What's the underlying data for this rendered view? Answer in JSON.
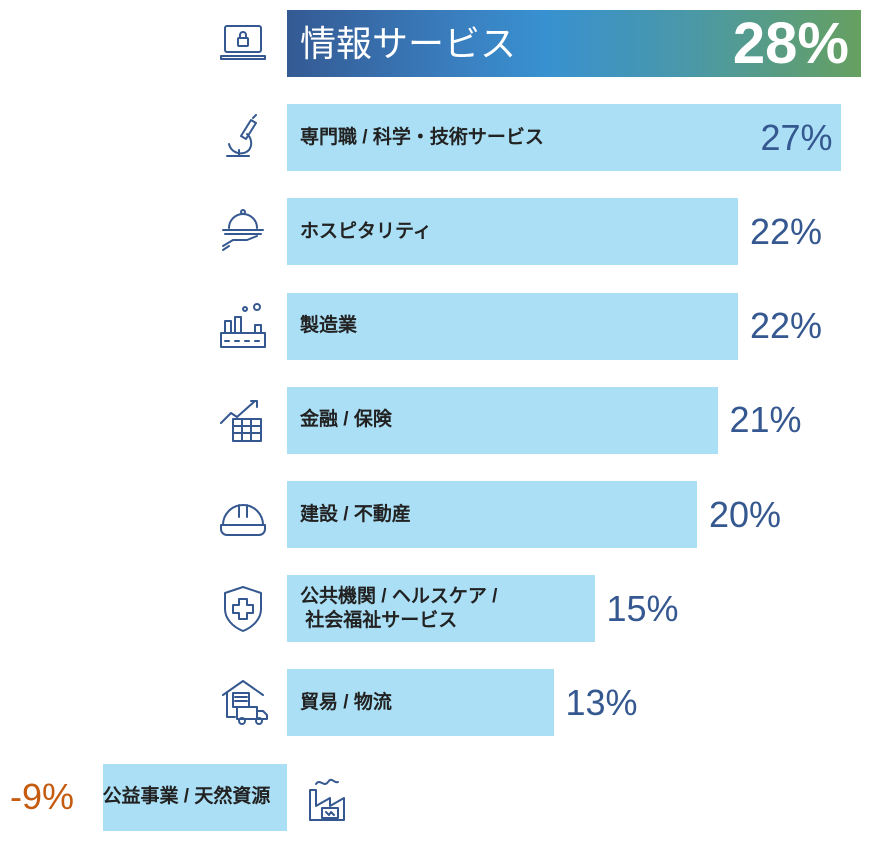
{
  "chart_data": {
    "type": "bar",
    "orientation": "horizontal",
    "categories": [
      "情報サービス",
      "専門職 / 科学・技術サービス",
      "ホスピタリティ",
      "製造業",
      "金融 / 保険",
      "建設 / 不動産",
      "公共機関 / ヘルスケア /\n 社会福祉サービス",
      "貿易 / 物流",
      "公益事業 / 天然資源"
    ],
    "values": [
      28,
      27,
      22,
      22,
      21,
      20,
      15,
      13,
      -9
    ],
    "value_labels": [
      "28%",
      "27%",
      "22%",
      "22%",
      "21%",
      "20%",
      "15%",
      "13%",
      "-9%"
    ],
    "icons": [
      "laptop-lock-icon",
      "microscope-icon",
      "service-cloche-icon",
      "factory-icon",
      "finance-chart-icon",
      "hard-hat-icon",
      "health-shield-icon",
      "warehouse-truck-icon",
      "power-plant-icon"
    ],
    "unit": "%",
    "grid": false,
    "colors": {
      "bar": "#aadff5",
      "highlight_start": "#345a93",
      "highlight_end": "#66a060",
      "value_text": "#34588f",
      "negative_text": "#c45b0f"
    }
  }
}
